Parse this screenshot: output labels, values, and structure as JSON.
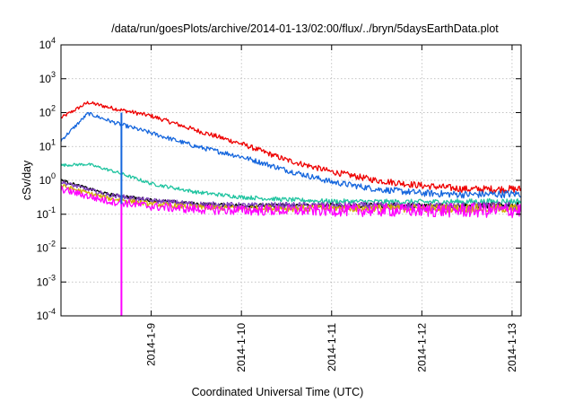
{
  "chart_data": {
    "type": "line",
    "title": "/data/run/goesPlots/archive/2014-01-13/02:00/flux/../bryn/5daysEarthData.plot",
    "xlabel": "Coordinated Universal Time (UTC)",
    "ylabel": "cSv/day",
    "yscale": "log",
    "ylim": [
      0.0001,
      10000
    ],
    "xlim_days": [
      0,
      5.1
    ],
    "x_ticks": [
      {
        "day": 1.0,
        "label": "2014-1-9"
      },
      {
        "day": 2.0,
        "label": "2014-1-10"
      },
      {
        "day": 3.0,
        "label": "2014-1-11"
      },
      {
        "day": 4.0,
        "label": "2014-1-12"
      },
      {
        "day": 5.0,
        "label": "2014-1-13"
      }
    ],
    "y_ticks": [
      {
        "value": 0.0001,
        "base": "10",
        "exp": "-4"
      },
      {
        "value": 0.001,
        "base": "10",
        "exp": "-3"
      },
      {
        "value": 0.01,
        "base": "10",
        "exp": "-2"
      },
      {
        "value": 0.1,
        "base": "10",
        "exp": "-1"
      },
      {
        "value": 1,
        "base": "10",
        "exp": "0"
      },
      {
        "value": 10,
        "base": "10",
        "exp": "1"
      },
      {
        "value": 100,
        "base": "10",
        "exp": "2"
      },
      {
        "value": 1000,
        "base": "10",
        "exp": "3"
      },
      {
        "value": 10000,
        "base": "10",
        "exp": "4"
      }
    ],
    "grid": true,
    "legend": "none",
    "x_day_units": "days after 2014-01-08 00:00 UTC",
    "series": [
      {
        "color": "#ee0000",
        "noise": 0.05,
        "points": [
          [
            0,
            70
          ],
          [
            0.3,
            200
          ],
          [
            0.6,
            130
          ],
          [
            1.0,
            80
          ],
          [
            1.5,
            30
          ],
          [
            2.0,
            12
          ],
          [
            2.5,
            4
          ],
          [
            3.0,
            1.8
          ],
          [
            3.5,
            1.0
          ],
          [
            4.0,
            0.7
          ],
          [
            4.5,
            0.55
          ],
          [
            5.1,
            0.55
          ]
        ]
      },
      {
        "color": "#1566dd",
        "noise": 0.05,
        "points": [
          [
            0,
            15
          ],
          [
            0.3,
            95
          ],
          [
            0.6,
            50
          ],
          [
            1.0,
            25
          ],
          [
            1.5,
            10
          ],
          [
            2.0,
            5
          ],
          [
            2.5,
            2
          ],
          [
            3.0,
            0.9
          ],
          [
            3.5,
            0.55
          ],
          [
            4.0,
            0.42
          ],
          [
            4.5,
            0.38
          ],
          [
            5.1,
            0.4
          ]
        ]
      },
      {
        "color": "#20c4a0",
        "noise": 0.04,
        "points": [
          [
            0,
            2.8
          ],
          [
            0.3,
            3.0
          ],
          [
            0.6,
            1.8
          ],
          [
            1.0,
            0.8
          ],
          [
            1.5,
            0.45
          ],
          [
            2.0,
            0.32
          ],
          [
            2.5,
            0.27
          ],
          [
            3.0,
            0.24
          ],
          [
            4.0,
            0.23
          ],
          [
            5.1,
            0.24
          ]
        ]
      },
      {
        "color": "#000000",
        "noise": 0.04,
        "points": [
          [
            0,
            1.0
          ],
          [
            0.5,
            0.4
          ],
          [
            1.0,
            0.26
          ],
          [
            1.5,
            0.2
          ],
          [
            2.0,
            0.18
          ],
          [
            3.0,
            0.18
          ],
          [
            4.0,
            0.18
          ],
          [
            5.1,
            0.18
          ]
        ]
      },
      {
        "color": "#8040c0",
        "noise": 0.06,
        "points": [
          [
            0,
            0.9
          ],
          [
            0.5,
            0.38
          ],
          [
            1.0,
            0.25
          ],
          [
            1.5,
            0.2
          ],
          [
            2.0,
            0.18
          ],
          [
            3.0,
            0.18
          ],
          [
            4.0,
            0.17
          ],
          [
            5.1,
            0.17
          ]
        ]
      },
      {
        "color": "#d0b000",
        "noise": 0.06,
        "points": [
          [
            0,
            0.7
          ],
          [
            0.5,
            0.3
          ],
          [
            1.0,
            0.2
          ],
          [
            1.5,
            0.16
          ],
          [
            2.0,
            0.15
          ],
          [
            3.0,
            0.15
          ],
          [
            4.0,
            0.15
          ],
          [
            5.1,
            0.15
          ]
        ]
      },
      {
        "color": "#ff00ff",
        "noise": 0.1,
        "points": [
          [
            0,
            0.55
          ],
          [
            0.5,
            0.25
          ],
          [
            1.0,
            0.17
          ],
          [
            1.5,
            0.14
          ],
          [
            2.0,
            0.13
          ],
          [
            3.0,
            0.13
          ],
          [
            4.0,
            0.13
          ],
          [
            5.1,
            0.13
          ]
        ]
      }
    ],
    "vertical_segments": [
      {
        "color": "#1566dd",
        "day": 0.67,
        "y_from": 0.18,
        "y_to": 100
      },
      {
        "color": "#ff00ff",
        "day": 0.67,
        "y_from": 0.0001,
        "y_to": 0.2
      }
    ]
  }
}
